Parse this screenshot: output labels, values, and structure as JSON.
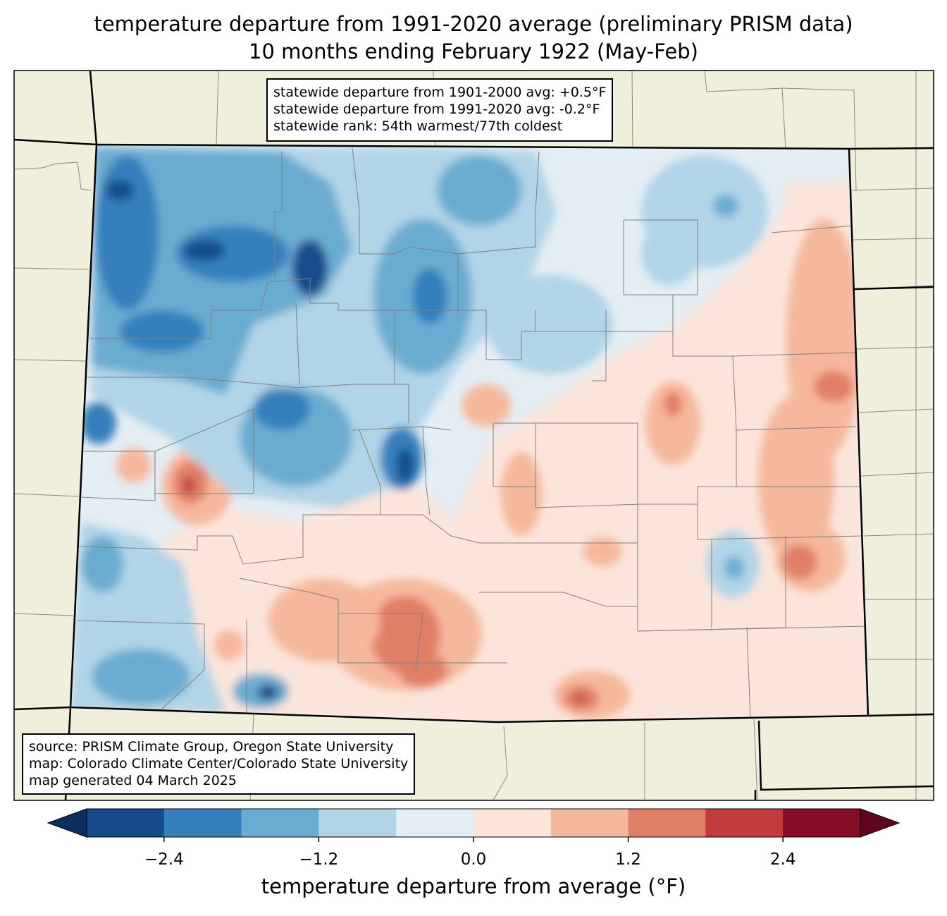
{
  "title": {
    "line1": "temperature departure from 1991-2020 average (preliminary PRISM data)",
    "line2": "10 months ending February 1922 (May-Feb)"
  },
  "stats": {
    "line1": "statewide departure from 1901-2000 avg: +0.5°F",
    "line2": "statewide departure from 1991-2020 avg: -0.2°F",
    "line3": "statewide rank: 54th warmest/77th coldest"
  },
  "source": {
    "line1": "source: PRISM Climate Group, Oregon State University",
    "line2": "map: Colorado Climate Center/Colorado State University",
    "line3": "map generated 04 March 2025"
  },
  "colorbar": {
    "label": "temperature departure from average (°F)",
    "ticks": [
      "−2.4",
      "−1.2",
      "0.0",
      "1.2",
      "2.4"
    ],
    "tick_values": [
      -2.4,
      -1.2,
      0.0,
      1.2,
      2.4
    ],
    "range": [
      -3.0,
      3.0
    ],
    "bins": [
      -3.0,
      -2.4,
      -1.8,
      -1.2,
      -0.6,
      0.0,
      0.6,
      1.2,
      1.8,
      2.4,
      3.0
    ],
    "colors": [
      "#154d8a",
      "#3580bc",
      "#6aacd1",
      "#b1d4e7",
      "#e4eef5",
      "#fbe5db",
      "#f6b89c",
      "#e17f66",
      "#c13b3c",
      "#860d26"
    ],
    "under_color": "#0a2f5c",
    "over_color": "#60051e"
  },
  "map": {
    "land_color": "#f0efdc",
    "neutral_color": "#e4eef5"
  }
}
